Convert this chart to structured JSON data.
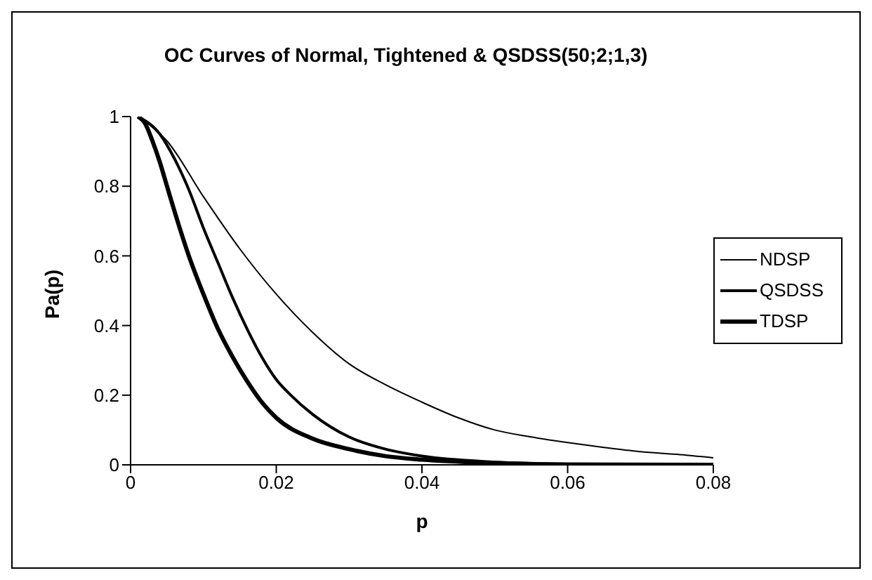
{
  "chart_data": {
    "type": "line",
    "title": "OC Curves of Normal, Tightened & QSDSS(50;2;1,3)",
    "xlabel": "p",
    "ylabel": "Pa(p)",
    "xlim": [
      0,
      0.08
    ],
    "xticks": [
      0,
      0.02,
      0.04,
      0.06,
      0.08
    ],
    "ylim": [
      0,
      1
    ],
    "yticks": [
      0,
      0.2,
      0.4,
      0.6,
      0.8,
      1
    ],
    "grid": false,
    "legend": "right",
    "marker": "none",
    "line_style": "solid",
    "series": [
      {
        "name": "NDSP",
        "color": "#000000",
        "x": [
          0.001,
          0.005,
          0.01,
          0.015,
          0.02,
          0.025,
          0.03,
          0.035,
          0.04,
          0.045,
          0.05,
          0.055,
          0.06,
          0.065,
          0.07,
          0.075,
          0.08
        ],
        "values": [
          1,
          0.93,
          0.77,
          0.62,
          0.49,
          0.38,
          0.29,
          0.23,
          0.18,
          0.135,
          0.1,
          0.08,
          0.064,
          0.05,
          0.038,
          0.03,
          0.02
        ]
      },
      {
        "name": "QSDSS",
        "color": "#000000",
        "x": [
          0.001,
          0.004,
          0.006,
          0.008,
          0.01,
          0.012,
          0.014,
          0.016,
          0.018,
          0.02,
          0.022,
          0.025,
          0.03,
          0.035,
          0.04,
          0.05,
          0.06,
          0.08
        ],
        "values": [
          1,
          0.95,
          0.88,
          0.79,
          0.68,
          0.58,
          0.48,
          0.39,
          0.31,
          0.245,
          0.2,
          0.145,
          0.08,
          0.045,
          0.025,
          0.008,
          0.002,
          0
        ]
      },
      {
        "name": "TDSP",
        "color": "#000000",
        "x": [
          0.001,
          0.002,
          0.003,
          0.004,
          0.005,
          0.006,
          0.008,
          0.01,
          0.012,
          0.014,
          0.016,
          0.018,
          0.02,
          0.025,
          0.03,
          0.035,
          0.04,
          0.05,
          0.06,
          0.08
        ],
        "values": [
          1,
          0.98,
          0.93,
          0.87,
          0.8,
          0.73,
          0.6,
          0.49,
          0.39,
          0.31,
          0.24,
          0.18,
          0.135,
          0.075,
          0.045,
          0.025,
          0.015,
          0.005,
          0.001,
          0
        ]
      }
    ]
  }
}
